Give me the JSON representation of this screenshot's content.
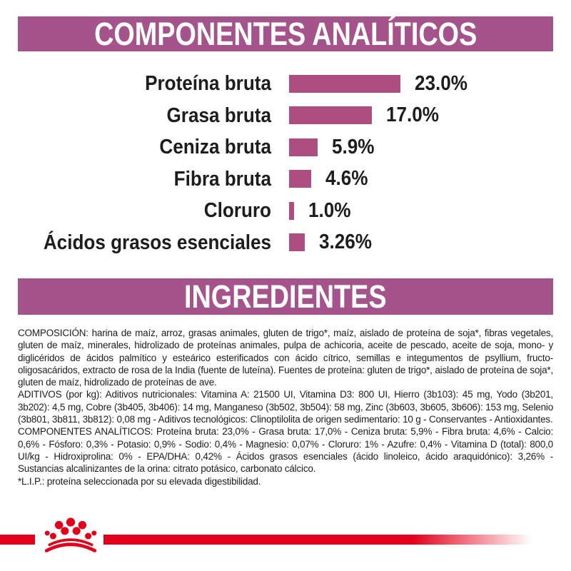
{
  "colors": {
    "banner_bg": "#a4548a",
    "bar_color": "#ad4d80",
    "brand_red": "#e2001a",
    "text_color": "#1d1d1b",
    "banner_text_color": "#ffffff",
    "page_bg": "#ffffff"
  },
  "headers": {
    "analytical": "COMPONENTES ANALÍTICOS",
    "ingredients": "INGREDIENTES"
  },
  "chart_data": {
    "type": "bar",
    "orientation": "horizontal",
    "title": "COMPONENTES ANALÍTICOS",
    "categories": [
      "Proteína bruta",
      "Grasa bruta",
      "Ceniza bruta",
      "Fibra bruta",
      "Cloruro",
      "Ácidos grasos esenciales"
    ],
    "values": [
      23.0,
      17.0,
      5.9,
      4.6,
      1.0,
      3.26
    ],
    "value_labels": [
      "23.0%",
      "17.0%",
      "5.9%",
      "4.6%",
      "1.0%",
      "3.26%"
    ],
    "xlim": [
      0,
      25
    ],
    "grid": false,
    "legend": false,
    "bar_color": "#ad4d80"
  },
  "ingredients": {
    "paragraphs": [
      "COMPOSICIÓN: harina de maíz, arroz, grasas animales, gluten de trigo*, maíz, aislado de proteína de soja*, fibras vegetales, gluten de maíz, minerales, hidrolizado de proteínas animales, pulpa de achicoria, aceite de pescado, aceite de soja, mono- y diglicéridos de ácidos palmítico y esteárico esterificados con ácido cítrico, semillas e integumentos de psyllium, fructo-oligosacáridos, extracto de rosa de la India (fuente de luteína). Fuentes de proteína: gluten de trigo*, aislado de proteína de soja*, gluten de maíz, hidrolizado de proteínas de ave.",
      "ADITIVOS (por kg): Aditivos nutricionales: Vitamina A: 21500 UI, Vitamina D3: 800 UI, Hierro (3b103): 45 mg, Yodo (3b201, 3b202): 4,5 mg, Cobre (3b405, 3b406): 14 mg, Manganeso (3b502, 3b504): 58 mg, Zinc (3b603, 3b605, 3b606): 153 mg, Selenio (3b801, 3b811, 3b812): 0,08 mg - Aditivos tecnológicos: Clinoptilolita de origen sedimentario: 10 g - Conservantes - Antioxidantes.",
      "COMPONENTES ANALÍTICOS: Proteína bruta: 23,0% - Grasa bruta: 17,0% - Ceniza bruta: 5,9% - Fibra bruta: 4,6% - Calcio: 0,6% - Fósforo: 0,3% - Potasio: 0,9% - Sodio: 0,4% - Magnesio: 0,07% - Cloruro: 1% - Azufre: 0,4% - Vitamina D (total): 800,0 UI/kg - Hidroxiprolina: 0% - EPA/DHA: 0,42% - Ácidos grasos esenciales (ácido linoleico, ácido araquidónico): 3,26% - Sustancias alcalinizantes de la orina: citrato potásico, carbonato cálcico.",
      "*L.I.P.: proteína seleccionada por su elevada digestibilidad."
    ]
  },
  "footer": {
    "logo": "royal-canin-crown"
  }
}
